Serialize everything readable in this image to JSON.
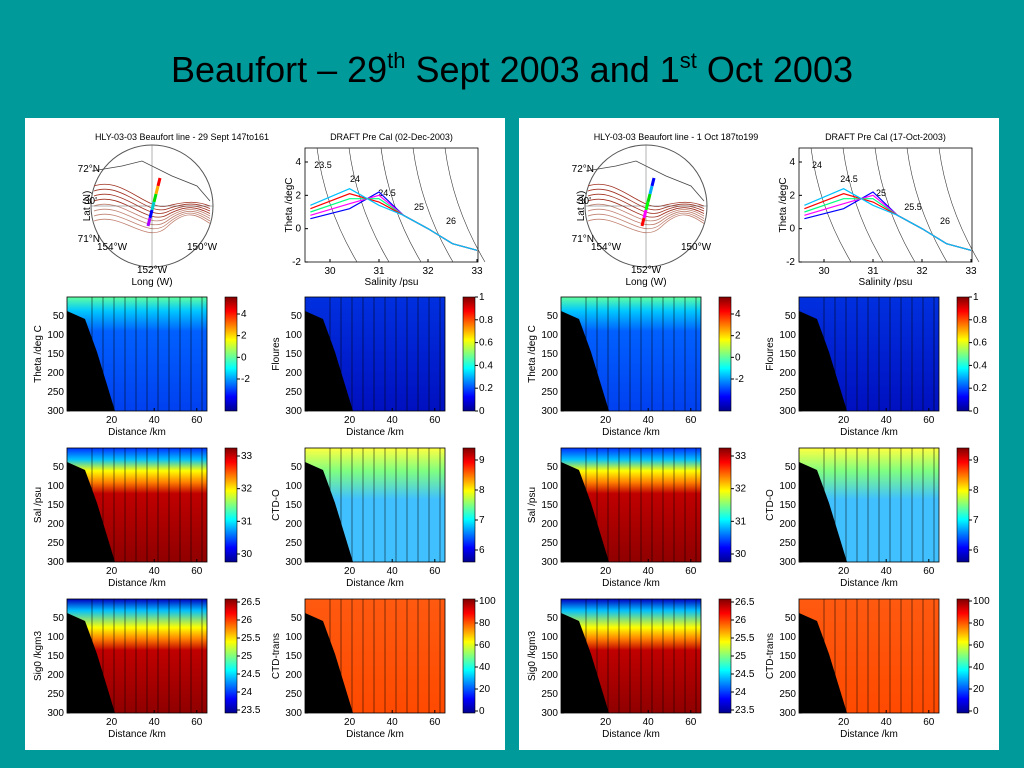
{
  "title": {
    "part1": "Beaufort – 29",
    "sup1": "th",
    "part2": " Sept 2003 and 1",
    "sup2": "st",
    "part3": " Oct 2003"
  },
  "panels": [
    {
      "map": {
        "title": "HLY-03-03 Beaufort line - 29 Sept 147to161",
        "xlabel": "Long (W)",
        "ylabel": "Lat (N)",
        "labels": [
          "72°N",
          "30'",
          "71°N",
          "154°W",
          "152°W",
          "150°W"
        ]
      },
      "ts": {
        "title": "DRAFT Pre Cal (02-Dec-2003)",
        "xlabel": "Salinity /psu",
        "ylabel": "Theta /degC",
        "xticks": [
          "30",
          "31",
          "32",
          "33"
        ],
        "yticks": [
          "-2",
          "0",
          "2",
          "4"
        ],
        "isopycnals": [
          "23.5",
          "24",
          "24.5",
          "25",
          "26"
        ]
      },
      "sections": {
        "xlabel": "Distance /km",
        "xticks": [
          "20",
          "40",
          "60"
        ],
        "yticks": [
          "50",
          "100",
          "150",
          "200",
          "250",
          "300"
        ],
        "plots": [
          {
            "ylabel": "Theta /deg C",
            "cbticks": [
              "-2",
              "0",
              "2",
              "4"
            ]
          },
          {
            "ylabel": "Floures",
            "cbticks": [
              "0",
              "0.2",
              "0.4",
              "0.6",
              "0.8",
              "1"
            ]
          },
          {
            "ylabel": "Sal /psu",
            "cbticks": [
              "30",
              "31",
              "32",
              "33"
            ]
          },
          {
            "ylabel": "CTD-O",
            "cbticks": [
              "6",
              "7",
              "8",
              "9"
            ]
          },
          {
            "ylabel": "Sig0 /kgm3",
            "cbticks": [
              "23.5",
              "24",
              "24.5",
              "25",
              "25.5",
              "26",
              "26.5"
            ]
          },
          {
            "ylabel": "CTD-trans",
            "cbticks": [
              "0",
              "20",
              "40",
              "60",
              "80",
              "100"
            ]
          }
        ]
      }
    },
    {
      "map": {
        "title": "HLY-03-03 Beaufort line - 1 Oct 187to199",
        "xlabel": "Long (W)",
        "ylabel": "Lat (N)",
        "labels": [
          "72°N",
          "30'",
          "71°N",
          "154°W",
          "152°W",
          "150°W"
        ]
      },
      "ts": {
        "title": "DRAFT Pre Cal (17-Oct-2003)",
        "xlabel": "Salinity /psu",
        "ylabel": "Theta /degC",
        "xticks": [
          "30",
          "31",
          "32",
          "33"
        ],
        "yticks": [
          "-2",
          "0",
          "2",
          "4"
        ],
        "isopycnals": [
          "24",
          "24.5",
          "25",
          "25.5",
          "26"
        ]
      },
      "sections": {
        "xlabel": "Distance /km",
        "xticks": [
          "20",
          "40",
          "60"
        ],
        "yticks": [
          "50",
          "100",
          "150",
          "200",
          "250",
          "300"
        ],
        "plots": [
          {
            "ylabel": "Theta /deg C",
            "cbticks": [
              "-2",
              "0",
              "2",
              "4"
            ]
          },
          {
            "ylabel": "Floures",
            "cbticks": [
              "0",
              "0.2",
              "0.4",
              "0.6",
              "0.8",
              "1"
            ]
          },
          {
            "ylabel": "Sal /psu",
            "cbticks": [
              "30",
              "31",
              "32",
              "33"
            ]
          },
          {
            "ylabel": "CTD-O",
            "cbticks": [
              "6",
              "7",
              "8",
              "9"
            ]
          },
          {
            "ylabel": "Sig0 /kgm3",
            "cbticks": [
              "23.5",
              "24",
              "24.5",
              "25",
              "25.5",
              "26",
              "26.5"
            ]
          },
          {
            "ylabel": "CTD-trans",
            "cbticks": [
              "0",
              "20",
              "40",
              "60",
              "80",
              "100"
            ]
          }
        ]
      }
    }
  ]
}
